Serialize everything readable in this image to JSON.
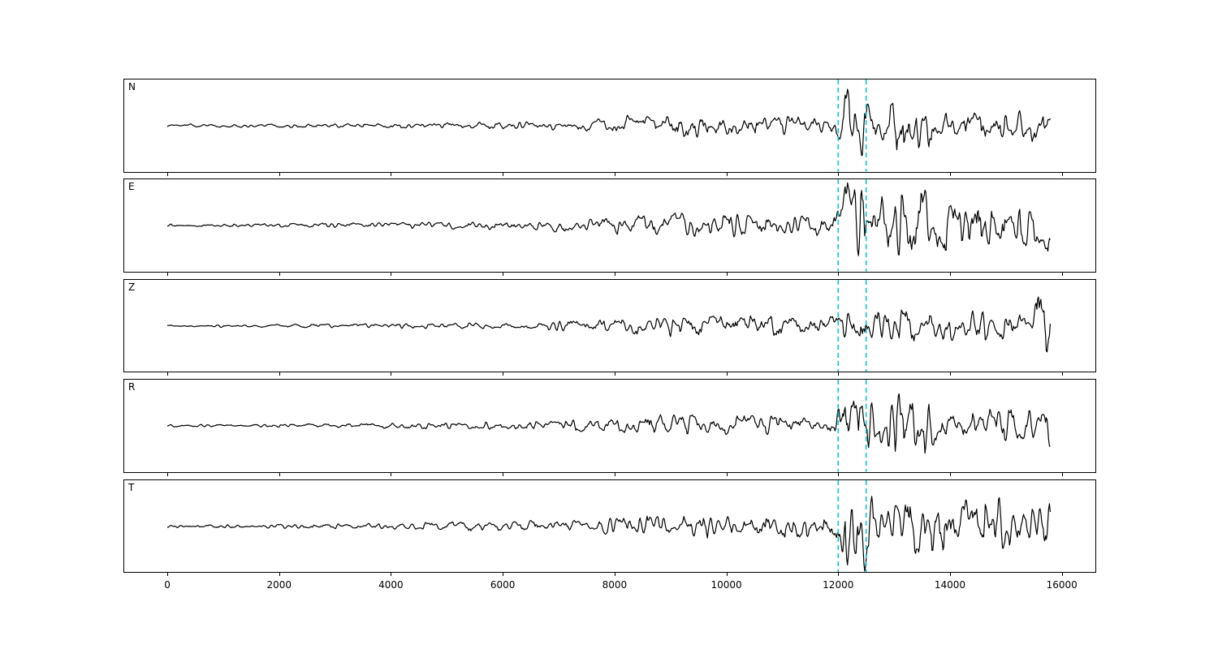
{
  "chart_data": {
    "type": "line",
    "title": "",
    "xlabel": "",
    "ylabel": "",
    "grid": false,
    "legend": "none",
    "xlim": [
      -770,
      16600
    ],
    "x_ticks": [
      0,
      2000,
      4000,
      6000,
      8000,
      10000,
      12000,
      14000,
      16000
    ],
    "x_tick_labels": [
      "0",
      "2000",
      "4000",
      "6000",
      "8000",
      "10000",
      "12000",
      "14000",
      "16000"
    ],
    "data_x_range": [
      0,
      15800
    ],
    "trace_color": "#000000",
    "marker_color": "#17becf",
    "vertical_markers": [
      {
        "x": 12000,
        "color": "#17becf",
        "linestyle": "dashed"
      },
      {
        "x": 12500,
        "color": "#17becf",
        "linestyle": "dashed"
      }
    ],
    "amplitude_units": "relative; 50 = panel half-height",
    "panels": [
      {
        "label": "N",
        "seed": 101,
        "amplitude_envelope": [
          [
            0,
            1.3
          ],
          [
            3000,
            2.0
          ],
          [
            6000,
            3.5
          ],
          [
            7600,
            6
          ],
          [
            8200,
            10
          ],
          [
            9500,
            11
          ],
          [
            11200,
            9
          ],
          [
            11900,
            8
          ],
          [
            12080,
            34
          ],
          [
            12300,
            36
          ],
          [
            12500,
            28
          ],
          [
            12750,
            14
          ],
          [
            13050,
            38
          ],
          [
            13400,
            30
          ],
          [
            13800,
            15
          ],
          [
            14500,
            16
          ],
          [
            15200,
            15
          ],
          [
            15800,
            24
          ]
        ]
      },
      {
        "label": "E",
        "seed": 202,
        "amplitude_envelope": [
          [
            0,
            1.3
          ],
          [
            3000,
            2.2
          ],
          [
            6000,
            4.5
          ],
          [
            7500,
            7
          ],
          [
            8500,
            10
          ],
          [
            10000,
            12
          ],
          [
            11500,
            12
          ],
          [
            11950,
            13
          ],
          [
            12120,
            42
          ],
          [
            12400,
            40
          ],
          [
            12700,
            30
          ],
          [
            13100,
            28
          ],
          [
            13500,
            32
          ],
          [
            14000,
            26
          ],
          [
            14700,
            28
          ],
          [
            15300,
            24
          ],
          [
            15800,
            26
          ]
        ]
      },
      {
        "label": "Z",
        "seed": 303,
        "amplitude_envelope": [
          [
            0,
            1.0
          ],
          [
            3000,
            1.8
          ],
          [
            6000,
            3
          ],
          [
            7500,
            6.5
          ],
          [
            8500,
            9
          ],
          [
            10000,
            10
          ],
          [
            11500,
            9
          ],
          [
            12000,
            10
          ],
          [
            12250,
            17
          ],
          [
            12700,
            13
          ],
          [
            13200,
            17
          ],
          [
            14000,
            16
          ],
          [
            15000,
            14
          ],
          [
            15450,
            13
          ],
          [
            15650,
            44
          ],
          [
            15800,
            34
          ]
        ]
      },
      {
        "label": "R",
        "seed": 404,
        "amplitude_envelope": [
          [
            0,
            1.3
          ],
          [
            3000,
            2.0
          ],
          [
            6000,
            3.5
          ],
          [
            7700,
            6.5
          ],
          [
            8300,
            10
          ],
          [
            9600,
            11
          ],
          [
            11300,
            9
          ],
          [
            11900,
            8
          ],
          [
            12100,
            32
          ],
          [
            12350,
            34
          ],
          [
            12550,
            26
          ],
          [
            12800,
            14
          ],
          [
            13050,
            36
          ],
          [
            13500,
            28
          ],
          [
            13900,
            15
          ],
          [
            14600,
            17
          ],
          [
            15300,
            15
          ],
          [
            15800,
            24
          ]
        ]
      },
      {
        "label": "T",
        "seed": 505,
        "amplitude_envelope": [
          [
            0,
            1.3
          ],
          [
            3000,
            2.3
          ],
          [
            6000,
            5
          ],
          [
            7500,
            7
          ],
          [
            8500,
            10
          ],
          [
            10000,
            12
          ],
          [
            11500,
            12
          ],
          [
            11950,
            13
          ],
          [
            12150,
            44
          ],
          [
            12450,
            42
          ],
          [
            12700,
            20
          ],
          [
            13000,
            18
          ],
          [
            13450,
            36
          ],
          [
            13900,
            32
          ],
          [
            14400,
            24
          ],
          [
            15000,
            28
          ],
          [
            15500,
            26
          ],
          [
            15800,
            36
          ]
        ]
      }
    ]
  }
}
